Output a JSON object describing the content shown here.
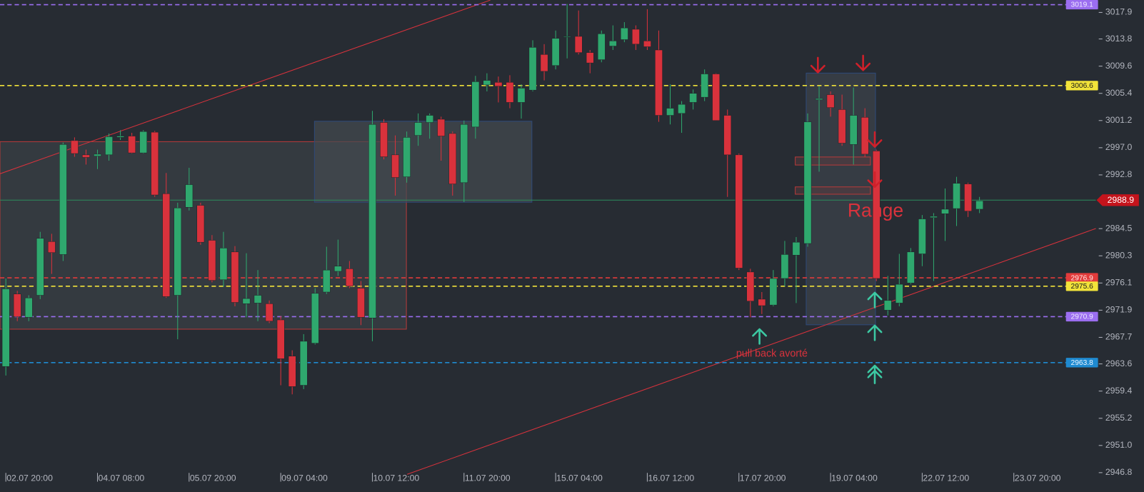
{
  "chart_data": {
    "type": "candlestick",
    "categories": [
      "02.07 20:00",
      null,
      null,
      null,
      null,
      null,
      null,
      null,
      "04.07 08:00",
      null,
      null,
      null,
      null,
      null,
      null,
      null,
      "05.07 20:00",
      null,
      null,
      null,
      null,
      null,
      null,
      null,
      "09.07 04:00",
      null,
      null,
      null,
      null,
      null,
      null,
      null,
      "10.07 12:00",
      null,
      null,
      null,
      null,
      null,
      null,
      null,
      "11.07 20:00",
      null,
      null,
      null,
      null,
      null,
      null,
      null,
      "15.07 04:00",
      null,
      null,
      null,
      null,
      null,
      null,
      null,
      "16.07 12:00",
      null,
      null,
      null,
      null,
      null,
      null,
      null,
      "17.07 20:00",
      null,
      null,
      null,
      null,
      null,
      null,
      null,
      "19.07 04:00",
      null,
      null,
      null,
      null,
      null,
      null,
      null,
      "22.07 12:00",
      null,
      null,
      null,
      null,
      null,
      null,
      null,
      "23.07 20:00"
    ],
    "open": [
      2963.2,
      2974.4,
      2970.8,
      2974.2,
      2982.5,
      2980.5,
      2998.1,
      2995.9,
      2995.7,
      2995.9,
      2998.6,
      2998.8,
      2996.2,
      2999.4,
      2989.9,
      2974.2,
      2987.8,
      2988.1,
      2982.7,
      2976.6,
      2980.9,
      2972.9,
      2973.0,
      2972.9,
      2970.4,
      2964.8,
      2960.3,
      2966.8,
      2974.7,
      2977.9,
      2978.3,
      2975.3,
      2970.7,
      3000.9,
      2995.9,
      2992.5,
      2998.9,
      3000.9,
      3001.4,
      2999.2,
      2991.6,
      3000.2,
      3006.7,
      3007.1,
      3007.1,
      3004.0,
      3005.9,
      3011.4,
      3009.7,
      3014.1,
      3014.2,
      3011.7,
      3010.6,
      3012.7,
      3013.7,
      3015.3,
      3013.5,
      3012.1,
      3002.0,
      3002.3,
      3004.0,
      3004.8,
      3008.4,
      3002.0,
      2995.9,
      2977.8,
      2973.6,
      2972.7,
      2976.8,
      2980.4,
      2982.2,
      3004.4,
      3005.2,
      3002.9,
      2997.5,
      3001.7,
      2996.5,
      2971.9,
      2973.0,
      2976.1,
      2980.6,
      2986.2,
      2986.8,
      2987.6,
      2991.4,
      2987.5,
      null,
      null,
      null
    ],
    "high": [
      2976.8,
      2974.9,
      2974.2,
      2984.0,
      2983.7,
      2997.8,
      2998.6,
      2996.7,
      2996.7,
      2999.2,
      2999.7,
      2999.3,
      2999.7,
      2999.6,
      2993.1,
      2988.5,
      2993.9,
      2988.5,
      2983.5,
      2984.0,
      2981.8,
      2980.7,
      2978.1,
      2973.4,
      2971.0,
      2965.7,
      2968.2,
      2975.3,
      2981.7,
      2982.8,
      2979.5,
      2976.4,
      3002.7,
      3001.4,
      2998.9,
      2999.5,
      3002.3,
      3002.3,
      3001.8,
      2999.5,
      3001.2,
      3008.1,
      3008.5,
      3008.0,
      3008.2,
      3006.8,
      3013.6,
      3013.0,
      3015.1,
      3019.2,
      3018.2,
      3012.1,
      3015.1,
      3015.9,
      3016.4,
      3015.9,
      3018.4,
      3015.1,
      3006.8,
      3004.2,
      3006.0,
      3009.1,
      3008.5,
      3002.9,
      2996.1,
      2978.3,
      2974.7,
      2978.1,
      2982.6,
      2983.2,
      3002.3,
      3006.5,
      3005.7,
      3005.2,
      3006.3,
      3003.1,
      2996.7,
      2977.2,
      2980.6,
      2981.5,
      2986.6,
      2986.9,
      2990.7,
      2992.5,
      2991.6,
      2989.4,
      null,
      null,
      null
    ],
    "low": [
      2961.8,
      2970.2,
      2970.2,
      2973.6,
      2977.5,
      2979.5,
      2995.6,
      2994.4,
      2993.7,
      2995.0,
      2998.2,
      2996.1,
      2996.1,
      2989.4,
      2973.8,
      2967.4,
      2987.3,
      2982.0,
      2976.2,
      2975.5,
      2972.5,
      2970.8,
      2970.2,
      2969.9,
      2960.3,
      2958.9,
      2959.7,
      2966.6,
      2974.4,
      2977.2,
      2975.3,
      2969.6,
      2967.1,
      2995.2,
      2989.6,
      2991.6,
      2997.3,
      2998.4,
      2995.0,
      2989.6,
      2988.6,
      2998.4,
      3005.7,
      3004.0,
      3003.1,
      3001.5,
      3005.7,
      3007.4,
      3009.1,
      3010.8,
      3011.4,
      3008.5,
      3010.2,
      3012.1,
      3013.3,
      3012.1,
      3012.1,
      3001.0,
      3000.6,
      2999.3,
      3002.9,
      3004.2,
      3001.2,
      2989.4,
      2978.1,
      2970.8,
      2971.3,
      2972.5,
      2975.6,
      2973.0,
      2981.7,
      2993.3,
      3001.8,
      2997.3,
      2994.4,
      2995.6,
      2976.4,
      2971.1,
      2972.5,
      2975.9,
      2978.7,
      2976.4,
      2982.6,
      2984.9,
      2986.3,
      2986.9,
      null,
      null,
      null
    ],
    "close": [
      2975.2,
      2970.9,
      2973.8,
      2983.0,
      2980.8,
      2997.5,
      2996.1,
      2995.5,
      2996.0,
      2998.7,
      2998.8,
      2996.2,
      2999.5,
      2989.7,
      2974.0,
      2987.7,
      2991.3,
      2982.4,
      2976.5,
      2981.5,
      2973.1,
      2973.7,
      2974.2,
      2970.2,
      2964.4,
      2960.1,
      2967.1,
      2974.5,
      2978.1,
      2978.7,
      2975.6,
      2970.8,
      3000.6,
      2995.6,
      2992.4,
      2998.6,
      3000.9,
      3002.0,
      2998.8,
      2991.4,
      3000.6,
      3007.2,
      3007.4,
      3006.5,
      3004.0,
      3006.2,
      3012.5,
      3008.8,
      3013.9,
      3014.2,
      3011.7,
      3010.1,
      3014.6,
      3013.5,
      3015.5,
      3013.0,
      3012.6,
      3002.0,
      3003.1,
      3003.7,
      3005.4,
      3008.4,
      3001.2,
      2995.9,
      2978.4,
      2973.3,
      2972.6,
      2976.8,
      2980.5,
      2982.4,
      3001.0,
      3004.6,
      3003.2,
      2997.7,
      3002.0,
      2996.0,
      2976.8,
      2973.4,
      2975.9,
      2980.9,
      2986.0,
      2986.4,
      2987.5,
      2991.5,
      2987.2,
      2988.8,
      null,
      null,
      null
    ],
    "up_color": "#2fa86e",
    "down_color": "#d9323c",
    "ylim": [
      2947.1,
      3019.8
    ],
    "yticks": [
      3017.9,
      3013.8,
      3009.6,
      3005.4,
      3001.2,
      {
        "value": 2997,
        "label": "2997.0"
      },
      2992.8,
      2984.5,
      2980.3,
      2976.1,
      2971.9,
      2967.7,
      2963.6,
      2959.4,
      2955.2,
      {
        "value": 2951,
        "label": "2951.0"
      },
      2946.8
    ],
    "levels": [
      {
        "value": 3019.1,
        "color": "#9b6ef0",
        "text_color": "#f0eaff"
      },
      {
        "value": 3006.6,
        "color": "#f2e33a",
        "text_color": "#1a1a1a"
      },
      {
        "value": 2976.9,
        "color": "#e23b3b",
        "text_color": "#ffe9e9"
      },
      {
        "value": 2975.6,
        "color": "#f2e33a",
        "text_color": "#1a1a1a"
      },
      {
        "value": 2970.9,
        "color": "#9b6ef0",
        "text_color": "#f0eaff"
      },
      {
        "value": 2963.8,
        "color": "#1f8ad0",
        "text_color": "#eaf5ff"
      }
    ],
    "last_price": {
      "value": 2988.9,
      "color": "#c4141c",
      "line_color": "#2c8c5c"
    },
    "annotations": [
      {
        "text": "Range"
      },
      {
        "text": "pull back avorté"
      }
    ]
  }
}
